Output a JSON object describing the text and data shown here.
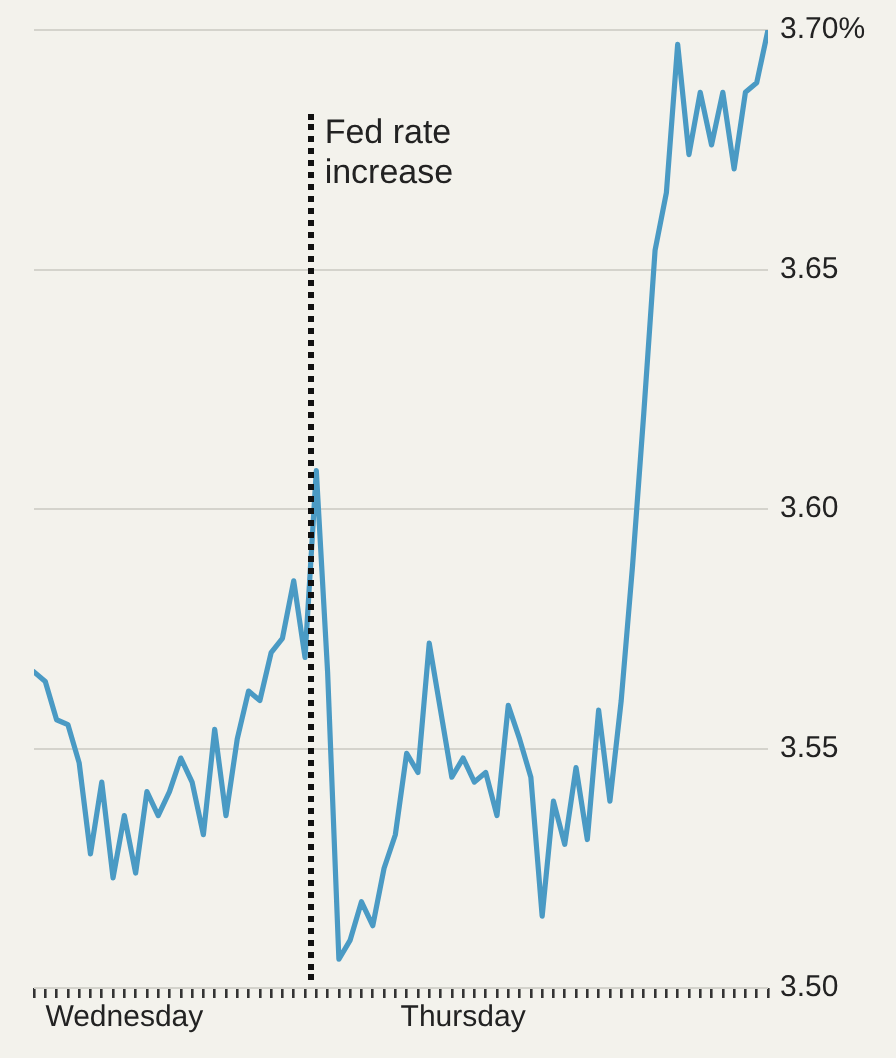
{
  "chart_data": {
    "type": "line",
    "categories": [
      null,
      null,
      null,
      null,
      null,
      null,
      null,
      null,
      "Wednesday",
      null,
      null,
      null,
      null,
      null,
      null,
      null,
      null,
      null,
      null,
      null,
      null,
      null,
      null,
      null,
      null,
      null,
      null,
      null,
      null,
      null,
      null,
      null,
      null,
      null,
      null,
      null,
      null,
      null,
      "Thursday",
      null,
      null,
      null,
      null,
      null,
      null,
      null,
      null,
      null,
      null,
      null,
      null,
      null,
      null,
      null,
      null,
      null,
      null,
      null,
      null,
      null,
      null,
      null,
      null,
      null,
      null,
      null
    ],
    "series": [
      {
        "color": "#4a9ac4",
        "values": [
          3.566,
          3.564,
          3.556,
          3.555,
          3.547,
          3.528,
          3.543,
          3.523,
          3.536,
          3.524,
          3.541,
          3.536,
          3.541,
          3.548,
          3.543,
          3.532,
          3.554,
          3.536,
          3.552,
          3.562,
          3.56,
          3.57,
          3.573,
          3.585,
          3.569,
          3.608,
          3.566,
          3.506,
          3.51,
          3.518,
          3.513,
          3.525,
          3.532,
          3.549,
          3.545,
          3.572,
          3.558,
          3.544,
          3.548,
          3.543,
          3.545,
          3.536,
          3.559,
          3.552,
          3.544,
          3.515,
          3.539,
          3.53,
          3.546,
          3.531,
          3.558,
          3.539,
          3.56,
          3.588,
          3.62,
          3.654,
          3.666,
          3.697,
          3.674,
          3.687,
          3.676,
          3.687,
          3.671,
          3.687,
          3.689,
          3.7
        ]
      }
    ],
    "ylim": [
      3.5,
      3.7
    ],
    "yticks": [
      {
        "value": 3.5,
        "label": "3.50"
      },
      3.55,
      {
        "value": 3.6,
        "label": "3.60"
      },
      3.65,
      {
        "value": 3.7,
        "label": "3.70%"
      }
    ],
    "grid": "y",
    "annotations": [
      "Fed rate increase"
    ]
  }
}
